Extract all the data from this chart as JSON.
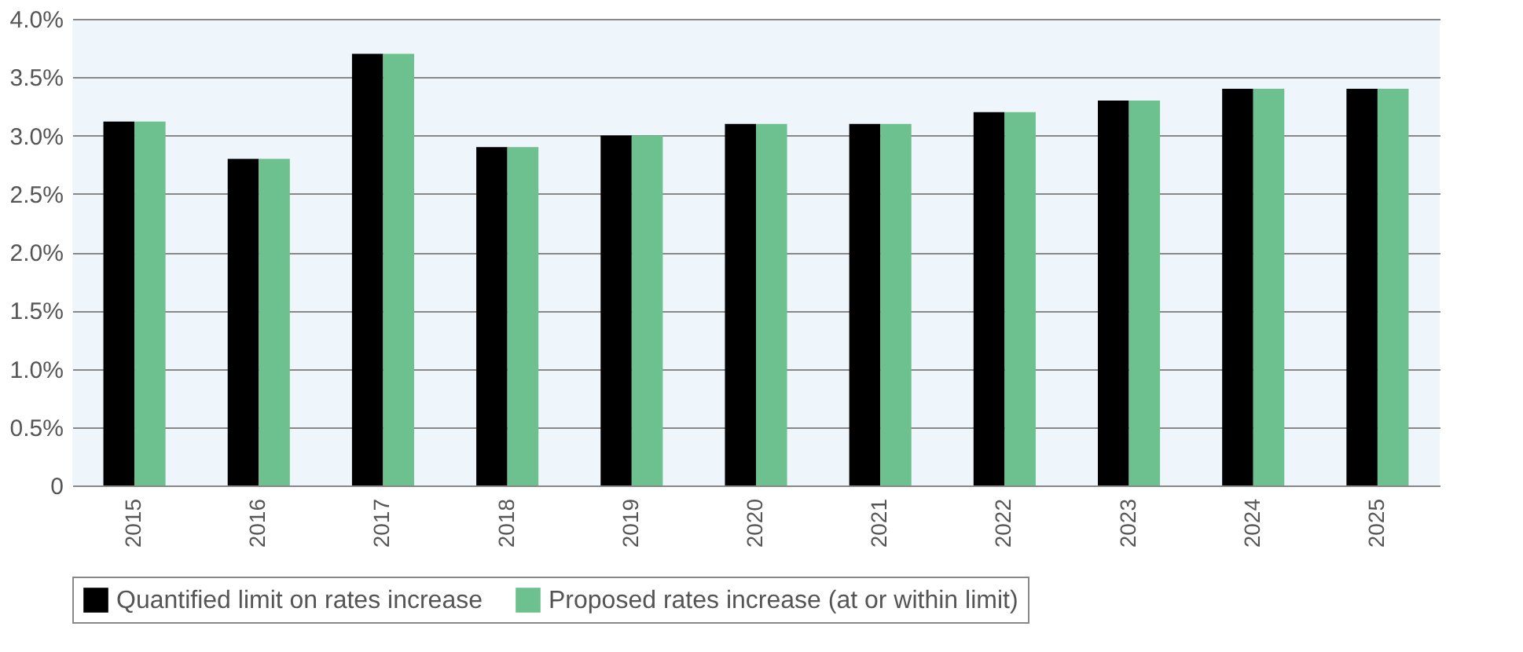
{
  "chart_data": {
    "type": "bar",
    "categories": [
      "2015",
      "2016",
      "2017",
      "2018",
      "2019",
      "2020",
      "2021",
      "2022",
      "2023",
      "2024",
      "2025"
    ],
    "series": [
      {
        "name": "Quantified limit on rates increase",
        "color": "#000000",
        "values": [
          3.12,
          2.8,
          3.7,
          2.9,
          3.0,
          3.1,
          3.1,
          3.2,
          3.3,
          3.4,
          3.4
        ]
      },
      {
        "name": "Proposed rates increase (at or within limit)",
        "color": "#6cc18f",
        "values": [
          3.12,
          2.8,
          3.7,
          2.9,
          3.0,
          3.1,
          3.1,
          3.2,
          3.3,
          3.4,
          3.4
        ]
      }
    ],
    "ylim": [
      0,
      4.0
    ],
    "yticks": [
      {
        "value": 0,
        "label": "0"
      },
      {
        "value": 0.5,
        "label": "0.5%"
      },
      {
        "value": 1.0,
        "label": "1.0%"
      },
      {
        "value": 1.5,
        "label": "1.5%"
      },
      {
        "value": 2.0,
        "label": "2.0%"
      },
      {
        "value": 2.5,
        "label": "2.5%"
      },
      {
        "value": 3.0,
        "label": "3.0%"
      },
      {
        "value": 3.5,
        "label": "3.5%"
      },
      {
        "value": 4.0,
        "label": "4.0%"
      }
    ],
    "grid": "y",
    "legend": "bottom"
  }
}
